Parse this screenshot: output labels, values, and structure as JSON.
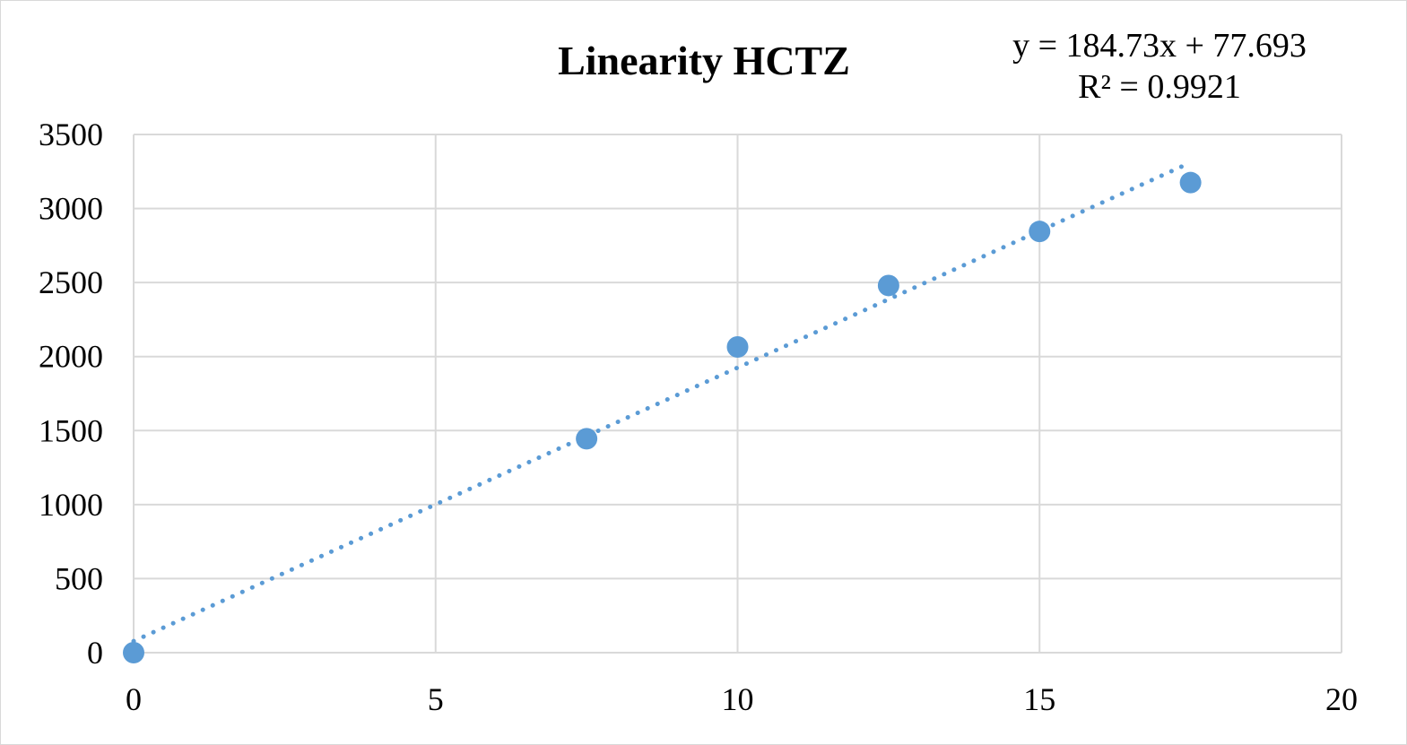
{
  "chart_data": {
    "type": "scatter",
    "title": "Linearity HCTZ",
    "xlabel": "",
    "ylabel": "",
    "xlim": [
      0,
      20
    ],
    "ylim": [
      0,
      3500
    ],
    "x_ticks": [
      0,
      5,
      10,
      15,
      20
    ],
    "y_ticks": [
      0,
      500,
      1000,
      1500,
      2000,
      2500,
      3000,
      3500
    ],
    "grid": true,
    "legend": "none",
    "series": [
      {
        "x": [
          0,
          7.5,
          10,
          12.5,
          15,
          17.5
        ],
        "y": [
          0,
          1445,
          2065,
          2480,
          2845,
          3175
        ],
        "color": "#5b9bd5"
      }
    ],
    "trendline": {
      "kind": "linear",
      "style": "dotted",
      "color": "#5b9bd5",
      "slope": 184.73,
      "intercept": 77.693,
      "equation": "y = 184.73x + 77.693",
      "r_squared": "R² = 0.9921"
    }
  }
}
